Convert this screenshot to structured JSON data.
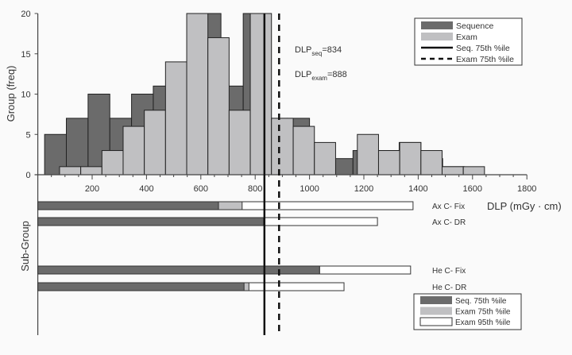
{
  "chart_data": [
    {
      "type": "bar",
      "ylabel": "Group (freq)",
      "xlabel": "DLP (mGy · cm)",
      "xlim": [
        0,
        1800
      ],
      "ylim": [
        0,
        20
      ],
      "xticks": [
        200,
        400,
        600,
        800,
        1000,
        1200,
        1400,
        1600,
        1800
      ],
      "yticks": [
        0,
        5,
        10,
        15,
        20
      ],
      "colors": {
        "sequence": "#6b6b6b",
        "exam": "#c0c0c2"
      },
      "series": [
        {
          "name": "Sequence",
          "bins": [
            [
              25,
              105,
              5
            ],
            [
              105,
              185,
              7
            ],
            [
              185,
              265,
              10
            ],
            [
              265,
              345,
              7
            ],
            [
              345,
              425,
              10
            ],
            [
              425,
              505,
              11
            ],
            [
              505,
              590,
              12
            ],
            [
              590,
              674,
              20
            ],
            [
              674,
              756,
              11
            ],
            [
              756,
              838,
              20
            ],
            [
              838,
              918,
              7
            ],
            [
              918,
              1000,
              7
            ],
            [
              1000,
              1082,
              3
            ],
            [
              1082,
              1160,
              2
            ],
            [
              1160,
              1246,
              3
            ],
            [
              1246,
              1330,
              3
            ],
            [
              1330,
              1410,
              4
            ],
            [
              1410,
              1490,
              2
            ],
            [
              1490,
              1570,
              1
            ]
          ]
        },
        {
          "name": "Exam",
          "bins": [
            [
              80,
              158,
              1
            ],
            [
              158,
              236,
              1
            ],
            [
              236,
              314,
              3
            ],
            [
              314,
              392,
              6
            ],
            [
              392,
              470,
              8
            ],
            [
              470,
              548,
              14
            ],
            [
              548,
              626,
              20
            ],
            [
              626,
              704,
              17
            ],
            [
              704,
              782,
              8
            ],
            [
              782,
              860,
              20
            ],
            [
              860,
              940,
              7
            ],
            [
              940,
              1018,
              6
            ],
            [
              1018,
              1096,
              4
            ],
            [
              1176,
              1254,
              5
            ],
            [
              1254,
              1332,
              3
            ],
            [
              1332,
              1410,
              4
            ],
            [
              1410,
              1488,
              3
            ],
            [
              1488,
              1566,
              1
            ],
            [
              1566,
              1644,
              1
            ]
          ]
        }
      ],
      "reference_lines": [
        {
          "name": "Seq. 75th %ile",
          "value": 834,
          "style": "solid"
        },
        {
          "name": "Exam 75th %ile",
          "value": 888,
          "style": "dashed"
        }
      ],
      "annotations": [
        {
          "base": "DLP",
          "sub": "seq",
          "rest": "=834"
        },
        {
          "base": "DLP",
          "sub": "exam",
          "rest": "=888"
        }
      ],
      "legend": {
        "placement": "top-right",
        "entries": [
          "Sequence",
          "Exam",
          "Seq. 75th %ile",
          "Exam 75th %ile"
        ]
      }
    },
    {
      "type": "bar",
      "orientation": "horizontal",
      "ylabel": "Sub-Group",
      "categories": [
        "Ax C- Fix",
        "Ax C- DR",
        "He C- Fix",
        "He C- DR"
      ],
      "series": [
        {
          "name": "Seq. 75th %ile",
          "values": [
            665,
            831,
            1037,
            759
          ],
          "color": "#6b6b6b"
        },
        {
          "name": "Exam 75th %ile",
          "values": [
            752,
            834,
            1037,
            777
          ],
          "color": "#c0c0c2"
        },
        {
          "name": "Exam 95th %ile",
          "values": [
            1381,
            1250,
            1372,
            1127
          ],
          "color": "#ffffff"
        }
      ],
      "legend": {
        "placement": "bottom-right",
        "entries": [
          "Seq. 75th %ile",
          "Exam 75th %ile",
          "Exam 95th %ile"
        ]
      }
    }
  ]
}
